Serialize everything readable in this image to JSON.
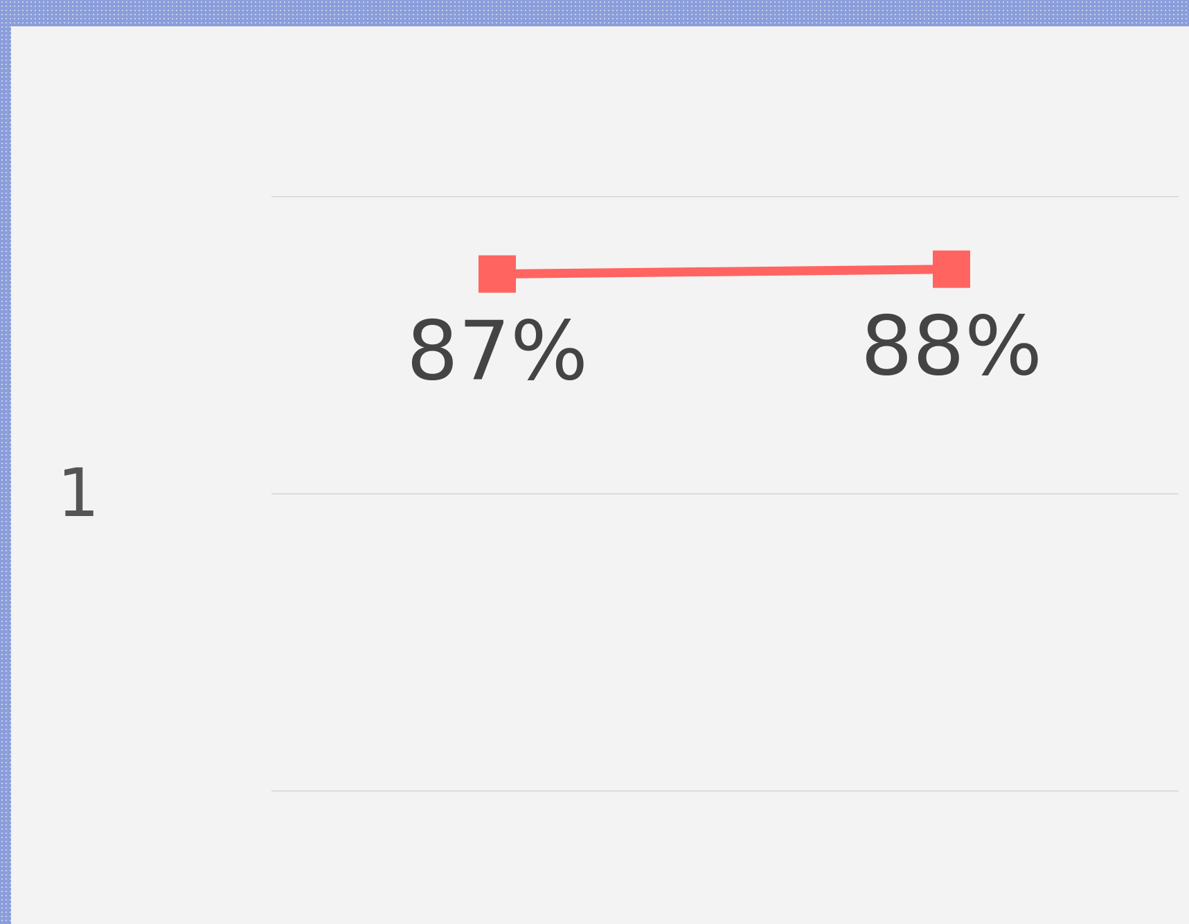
{
  "chart_data": {
    "type": "line",
    "ylabel": "1",
    "categories": [
      null,
      null
    ],
    "series": [
      {
        "color": "#ff6461",
        "values": [
          87,
          88
        ],
        "value_labels": [
          "87%",
          "88%"
        ]
      }
    ],
    "ylim": [
      -20,
      103
    ]
  }
}
